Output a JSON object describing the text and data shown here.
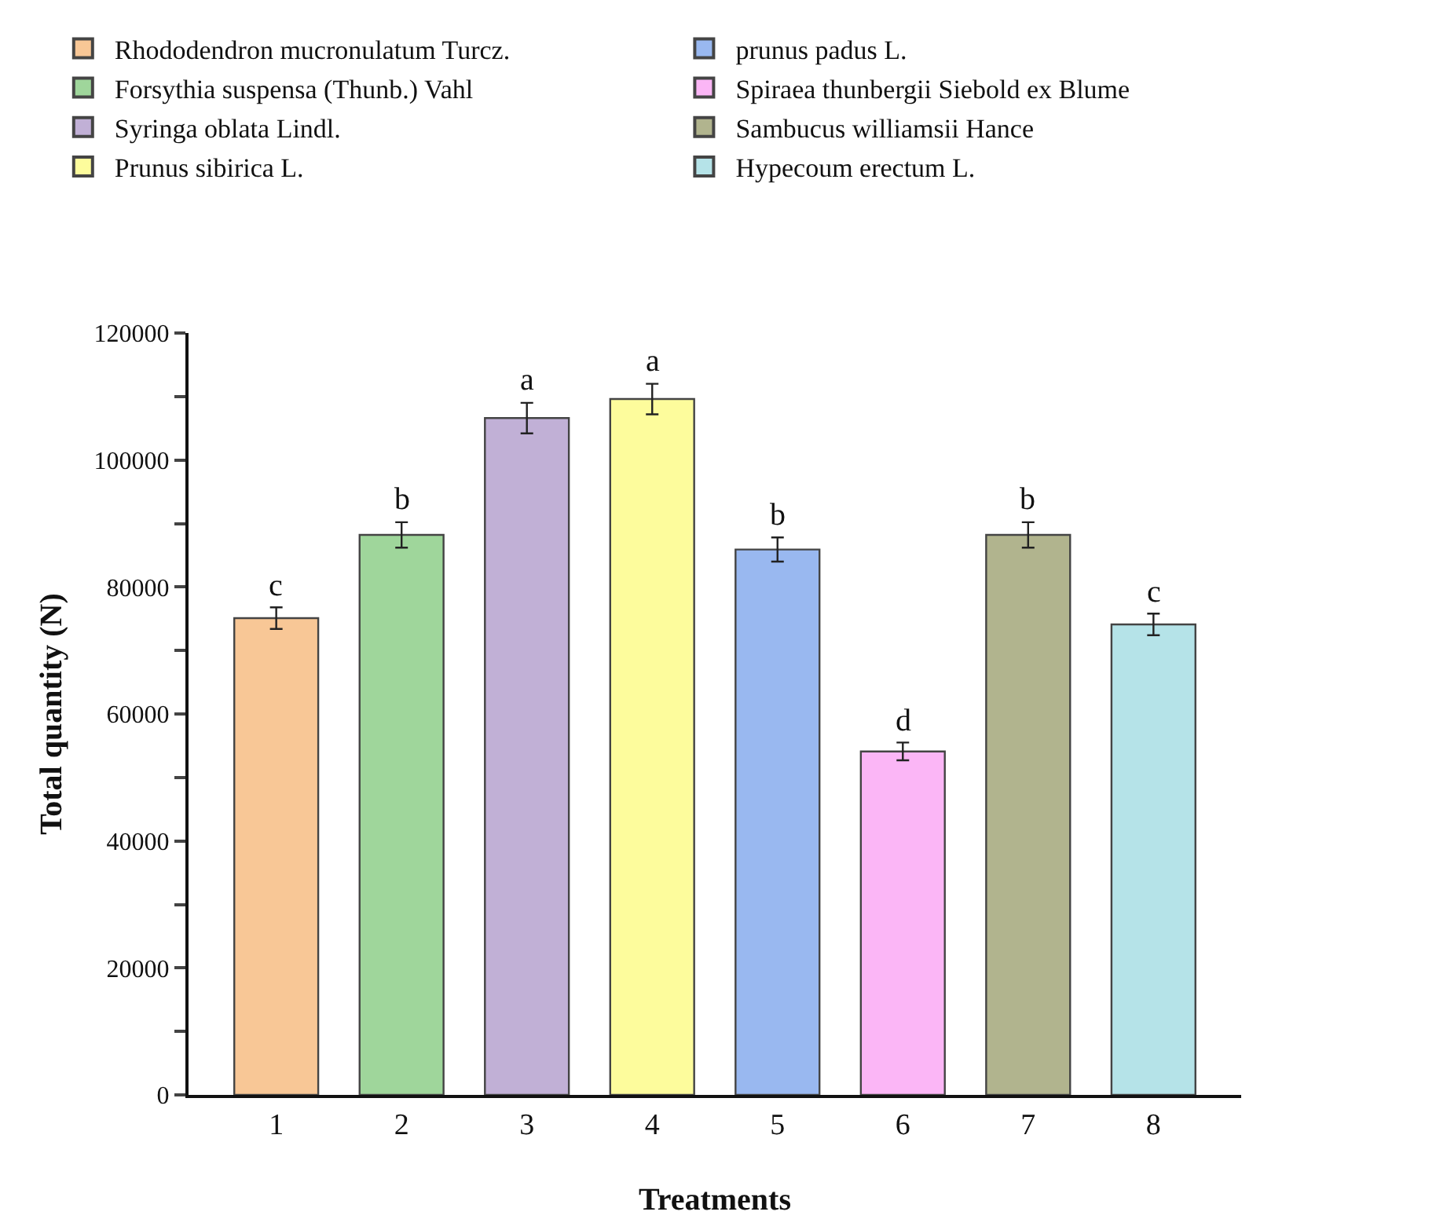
{
  "chart_data": {
    "type": "bar",
    "xlabel": "Treatments",
    "ylabel": "Total quantity (N)",
    "categories": [
      "1",
      "2",
      "3",
      "4",
      "5",
      "6",
      "7",
      "8"
    ],
    "series": [
      {
        "name": "Rhododendron mucronulatum Turcz.",
        "color": "#f8c796",
        "values": [
          75100,
          null,
          null,
          null,
          null,
          null,
          null,
          null
        ],
        "errors": [
          1700,
          null,
          null,
          null,
          null,
          null,
          null,
          null
        ]
      },
      {
        "name": "Forsythia suspensa (Thunb.) Vahl",
        "color": "#9fd69b",
        "values": [
          null,
          88200,
          null,
          null,
          null,
          null,
          null,
          null
        ],
        "errors": [
          null,
          2000,
          null,
          null,
          null,
          null,
          null,
          null
        ]
      },
      {
        "name": "Syringa oblata Lindl.",
        "color": "#c1b0d6",
        "values": [
          null,
          null,
          106600,
          null,
          null,
          null,
          null,
          null
        ],
        "errors": [
          null,
          null,
          2400,
          null,
          null,
          null,
          null,
          null
        ]
      },
      {
        "name": "Prunus sibirica L.",
        "color": "#fdfc9c",
        "values": [
          null,
          null,
          null,
          109600,
          null,
          null,
          null,
          null
        ],
        "errors": [
          null,
          null,
          null,
          2400,
          null,
          null,
          null,
          null
        ]
      },
      {
        "name": "prunus padus L.",
        "color": "#99b8f0",
        "values": [
          null,
          null,
          null,
          null,
          85900,
          null,
          null,
          null
        ],
        "errors": [
          null,
          null,
          null,
          null,
          1900,
          null,
          null,
          null
        ]
      },
      {
        "name": "Spiraea thunbergii Siebold ex Blume",
        "color": "#fbb6f6",
        "values": [
          null,
          null,
          null,
          null,
          null,
          54100,
          null,
          null
        ],
        "errors": [
          null,
          null,
          null,
          null,
          null,
          1400,
          null,
          null
        ]
      },
      {
        "name": "Sambucus williamsii Hance",
        "color": "#b1b48e",
        "values": [
          null,
          null,
          null,
          null,
          null,
          null,
          88200,
          null
        ],
        "errors": [
          null,
          null,
          null,
          null,
          null,
          null,
          2000,
          null
        ]
      },
      {
        "name": "Hypecoum erectum L.",
        "color": "#b5e3e8",
        "values": [
          null,
          null,
          null,
          null,
          null,
          null,
          null,
          74100
        ],
        "errors": [
          null,
          null,
          null,
          null,
          null,
          null,
          null,
          1700
        ]
      }
    ],
    "ylim": [
      0,
      120000
    ],
    "yticks": [
      0,
      {
        "value": 10000,
        "label": null
      },
      20000,
      {
        "value": 30000,
        "label": null
      },
      40000,
      {
        "value": 50000,
        "label": null
      },
      60000,
      {
        "value": 70000,
        "label": null
      },
      80000,
      {
        "value": 90000,
        "label": null
      },
      100000,
      {
        "value": 110000,
        "label": null
      },
      120000
    ],
    "annotations": [
      {
        "text": "c",
        "x": "1",
        "y": 76800
      },
      {
        "text": "b",
        "x": "2",
        "y": 90200
      },
      {
        "text": "a",
        "x": "3",
        "y": 109000
      },
      {
        "text": "a",
        "x": "4",
        "y": 112000
      },
      {
        "text": "b",
        "x": "5",
        "y": 87800
      },
      {
        "text": "d",
        "x": "6",
        "y": 55500
      },
      {
        "text": "b",
        "x": "7",
        "y": 90200
      },
      {
        "text": "c",
        "x": "8",
        "y": 75800
      }
    ],
    "legend": "top"
  }
}
